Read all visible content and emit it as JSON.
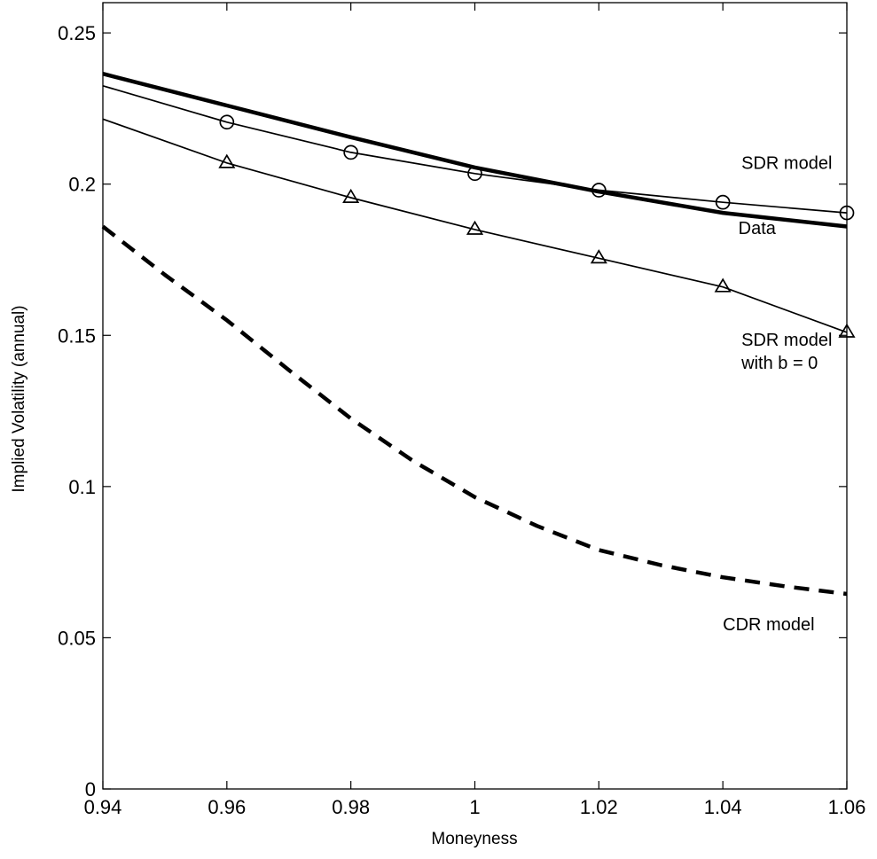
{
  "chart_data": {
    "type": "line",
    "title": "",
    "xlabel": "Moneyness",
    "ylabel": "Implied Volatility (annual)",
    "xlim": [
      0.94,
      1.06
    ],
    "ylim": [
      0,
      0.26
    ],
    "x_ticks": [
      0.94,
      0.96,
      0.98,
      1.0,
      1.02,
      1.04,
      1.06
    ],
    "x_tick_labels": [
      "0.94",
      "0.96",
      "0.98",
      "1",
      "1.02",
      "1.04",
      "1.06"
    ],
    "y_ticks": [
      0,
      0.05,
      0.1,
      0.15,
      0.2,
      0.25
    ],
    "y_tick_labels": [
      "0",
      "0.05",
      "0.1",
      "0.15",
      "0.2",
      "0.25"
    ],
    "grid": false,
    "legend": "none",
    "series": [
      {
        "name": "Data",
        "style": "thick-solid",
        "x": [
          0.94,
          0.96,
          0.98,
          1.0,
          1.02,
          1.04,
          1.06
        ],
        "values": [
          0.2365,
          0.226,
          0.2155,
          0.2055,
          0.1975,
          0.1905,
          0.186
        ]
      },
      {
        "name": "SDR model",
        "style": "solid-circle",
        "x": [
          0.94,
          0.96,
          0.98,
          1.0,
          1.02,
          1.04,
          1.06
        ],
        "values": [
          0.2325,
          0.2205,
          0.2105,
          0.2035,
          0.198,
          0.194,
          0.1905
        ]
      },
      {
        "name": "SDR model with b = 0",
        "style": "solid-triangle",
        "x": [
          0.94,
          0.96,
          0.98,
          1.0,
          1.02,
          1.04,
          1.06
        ],
        "values": [
          0.2215,
          0.207,
          0.1955,
          0.185,
          0.1755,
          0.166,
          0.151
        ]
      },
      {
        "name": "CDR model",
        "style": "dashed",
        "x": [
          0.94,
          0.95,
          0.96,
          0.97,
          0.98,
          0.99,
          1.0,
          1.01,
          1.02,
          1.03,
          1.04,
          1.05,
          1.06
        ],
        "values": [
          0.186,
          0.17,
          0.155,
          0.1385,
          0.1225,
          0.1085,
          0.0965,
          0.087,
          0.079,
          0.074,
          0.07,
          0.067,
          0.0645
        ]
      }
    ],
    "annotations": [
      {
        "text": "SDR model",
        "x": 1.043,
        "y": 0.205
      },
      {
        "text": "Data",
        "x": 1.0425,
        "y": 0.1835
      },
      {
        "text": "SDR model",
        "x": 1.043,
        "y": 0.1465
      },
      {
        "text": "with b = 0",
        "x": 1.043,
        "y": 0.139
      },
      {
        "text": "CDR model",
        "x": 1.04,
        "y": 0.0525
      }
    ]
  }
}
